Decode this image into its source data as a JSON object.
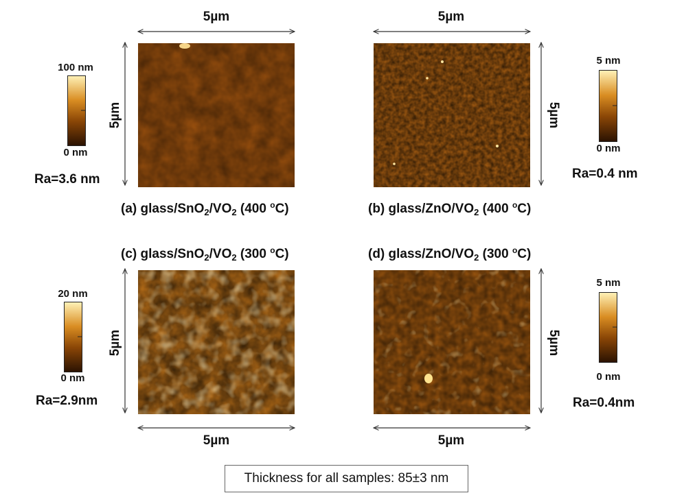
{
  "panels": {
    "a": {
      "caption": {
        "pre": "(a) glass/SnO",
        "s1": "2",
        "mid": "/VO",
        "s2": "2",
        "temp": " (400 ",
        "deg": "o",
        "end": "C)"
      },
      "width_label": "5µm",
      "height_label": "5µm",
      "scale_max": "100 nm",
      "scale_min": "0 nm",
      "ra": "Ra=3.6 nm"
    },
    "b": {
      "caption": {
        "pre": "(b) glass/ZnO/VO",
        "s1": "",
        "mid": "",
        "s2": "2",
        "temp": " (400 ",
        "deg": "o",
        "end": "C)"
      },
      "width_label": "5µm",
      "height_label": "5µm",
      "scale_max": "5 nm",
      "scale_min": "0 nm",
      "ra": "Ra=0.4 nm"
    },
    "c": {
      "caption": {
        "pre": "(c) glass/SnO",
        "s1": "2",
        "mid": "/VO",
        "s2": "2",
        "temp": " (300 ",
        "deg": "o",
        "end": "C)"
      },
      "width_label": "5µm",
      "height_label": "5µm",
      "scale_max": "20 nm",
      "scale_min": "0 nm",
      "ra": "Ra=2.9nm"
    },
    "d": {
      "caption": {
        "pre": "(d) glass/ZnO/VO",
        "s1": "",
        "mid": "",
        "s2": "2",
        "temp": " (300 ",
        "deg": "o",
        "end": "C)"
      },
      "width_label": "5µm",
      "height_label": "5µm",
      "scale_max": "5 nm",
      "scale_min": "0 nm",
      "ra": "Ra=0.4nm"
    }
  },
  "footer": {
    "thickness": "Thickness for all samples: 85±3 nm"
  },
  "colors": {
    "afm_dark": "#3a1b04",
    "afm_mid": "#a45a12",
    "afm_light": "#ffeaa0"
  }
}
